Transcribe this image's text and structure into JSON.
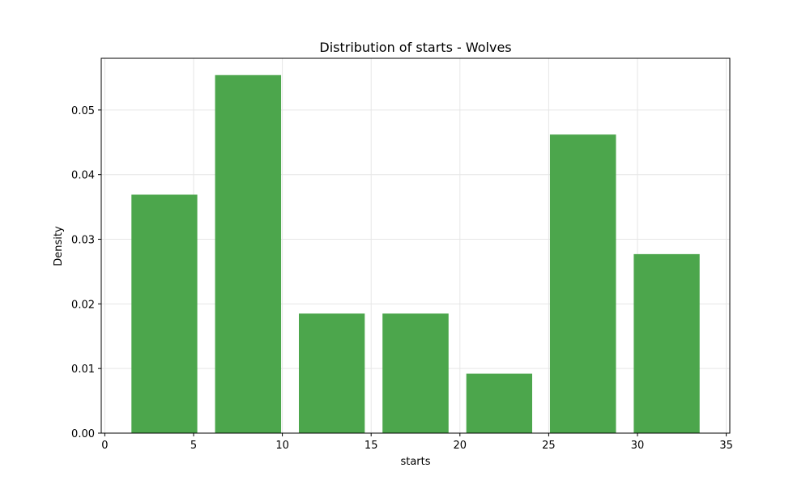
{
  "chart_data": {
    "type": "bar",
    "title": "Distribution of starts - Wolves",
    "xlabel": "starts",
    "ylabel": "Density",
    "xlim": [
      -0.2,
      35.2
    ],
    "ylim": [
      0,
      0.058
    ],
    "xticks": [
      0,
      5,
      10,
      15,
      20,
      25,
      30,
      35
    ],
    "xtick_labels": [
      "0",
      "5",
      "10",
      "15",
      "20",
      "25",
      "30",
      "35"
    ],
    "yticks": [
      0.0,
      0.01,
      0.02,
      0.03,
      0.04,
      0.05
    ],
    "ytick_labels": [
      "0.00",
      "0.01",
      "0.02",
      "0.03",
      "0.04",
      "0.05"
    ],
    "bins": [
      {
        "start": 1.5,
        "end": 5.21,
        "density": 0.0369
      },
      {
        "start": 6.21,
        "end": 9.93,
        "density": 0.0554
      },
      {
        "start": 10.93,
        "end": 14.64,
        "density": 0.0185
      },
      {
        "start": 15.64,
        "end": 19.36,
        "density": 0.0185
      },
      {
        "start": 20.36,
        "end": 24.07,
        "density": 0.0092
      },
      {
        "start": 25.07,
        "end": 28.79,
        "density": 0.0462
      },
      {
        "start": 29.79,
        "end": 33.5,
        "density": 0.0277
      }
    ],
    "bar_color": "#4ca64c",
    "grid": true
  }
}
